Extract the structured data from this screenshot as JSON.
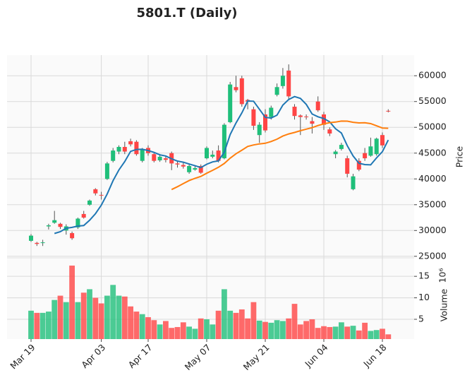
{
  "chart_data": {
    "type": "candlestick",
    "title": "5801.T (Daily)",
    "ylabel": "Price",
    "volume_label": "Volume",
    "volume_offset": "10⁶",
    "categories": [
      "Mar 19",
      null,
      null,
      null,
      null,
      null,
      null,
      null,
      null,
      null,
      null,
      null,
      "Apr 03",
      null,
      null,
      null,
      null,
      null,
      null,
      null,
      "Apr 17",
      null,
      null,
      null,
      null,
      null,
      null,
      null,
      null,
      null,
      "May 07",
      null,
      null,
      null,
      null,
      null,
      null,
      null,
      null,
      null,
      "May 21",
      null,
      null,
      null,
      null,
      null,
      null,
      null,
      null,
      null,
      "Jun 04",
      null,
      null,
      null,
      null,
      null,
      null,
      null,
      null,
      null,
      "Jun 18",
      null
    ],
    "open": [
      28000,
      27600,
      27600,
      30800,
      31500,
      31300,
      30000,
      29500,
      30600,
      33200,
      35000,
      38000,
      36900,
      40000,
      43500,
      45300,
      46200,
      47300,
      47200,
      43500,
      46000,
      44800,
      43600,
      44000,
      45000,
      43000,
      42700,
      41300,
      41800,
      42500,
      44000,
      44300,
      45500,
      44000,
      51000,
      57800,
      59500,
      55300,
      53500,
      48500,
      52500,
      52000,
      56300,
      58000,
      61000,
      54000,
      52300,
      52100,
      51200,
      55000,
      52500,
      49600,
      44800,
      45800,
      44000,
      38000,
      43500,
      45000,
      44500,
      44800,
      48500,
      53200
    ],
    "high": [
      29300,
      27800,
      28200,
      31300,
      33800,
      31500,
      31200,
      29800,
      32500,
      33800,
      36000,
      38200,
      37500,
      43300,
      46000,
      46500,
      47200,
      47800,
      47500,
      46000,
      46500,
      45000,
      44800,
      44500,
      45300,
      43500,
      43200,
      43000,
      42500,
      42800,
      46300,
      45500,
      46500,
      50800,
      58800,
      60000,
      60000,
      55500,
      54000,
      51000,
      53500,
      54200,
      58500,
      61500,
      62200,
      54500,
      52500,
      52500,
      52000,
      56000,
      53000,
      50000,
      45600,
      47000,
      44500,
      41000,
      44000,
      46000,
      48000,
      48000,
      49000,
      53500
    ],
    "low": [
      27800,
      27000,
      27000,
      30200,
      31300,
      30300,
      29200,
      28200,
      30300,
      32300,
      34800,
      36800,
      36000,
      39800,
      43200,
      44800,
      44800,
      46300,
      44500,
      43200,
      44500,
      43200,
      43300,
      43200,
      41700,
      42200,
      42000,
      41000,
      41600,
      41000,
      43800,
      44000,
      43200,
      43800,
      50800,
      56800,
      54000,
      53500,
      49500,
      47000,
      49000,
      51500,
      56000,
      57500,
      55500,
      51500,
      48500,
      51500,
      48800,
      53000,
      49500,
      48300,
      44000,
      45500,
      40300,
      37800,
      41500,
      43500,
      44300,
      44500,
      46000,
      52900
    ],
    "close": [
      29000,
      27400,
      27700,
      31000,
      32000,
      30700,
      30800,
      28500,
      32300,
      32500,
      35800,
      37200,
      36800,
      43000,
      45500,
      46200,
      45300,
      46700,
      44800,
      45700,
      45000,
      43500,
      44300,
      43700,
      43000,
      42800,
      42400,
      42500,
      42100,
      41200,
      46000,
      44700,
      43500,
      50500,
      58300,
      57200,
      54500,
      55000,
      50300,
      50500,
      49400,
      53800,
      57800,
      60000,
      56000,
      52200,
      52000,
      52000,
      50700,
      53300,
      50500,
      48800,
      45300,
      46600,
      41000,
      40500,
      41800,
      44000,
      46300,
      47800,
      46500,
      53100
    ],
    "volume": [
      7,
      6.5,
      6.5,
      6.8,
      9.5,
      10.5,
      9,
      17.5,
      9,
      11.2,
      12,
      10,
      8.7,
      10.5,
      13,
      10.5,
      10.3,
      8,
      6.8,
      6.2,
      5.5,
      4.8,
      3.8,
      4.6,
      3,
      3.2,
      4.3,
      3.3,
      2.8,
      5.2,
      5,
      3.8,
      7,
      12,
      7,
      6.5,
      7.3,
      5.2,
      9,
      4.7,
      4.4,
      4.2,
      4.8,
      4.6,
      5.2,
      8.6,
      3.8,
      4.6,
      5,
      3,
      3.4,
      3.2,
      3.3,
      4.3,
      3.3,
      3.5,
      2.4,
      4.2,
      2.3,
      2.5,
      2.8,
      1.5
    ],
    "up_color": "#1fbf7a",
    "down_color": "#ff4545",
    "mav": [
      5,
      25
    ],
    "mav_colors": [
      "#1f77b4",
      "#ff7f0e"
    ],
    "ylim": [
      24700,
      64000
    ],
    "yticks": [
      25000,
      30000,
      35000,
      40000,
      45000,
      50000,
      55000,
      60000
    ],
    "volume_ylim": [
      0.4,
      19.3
    ],
    "volume_yticks": [
      5,
      10,
      15
    ],
    "grid": true
  }
}
